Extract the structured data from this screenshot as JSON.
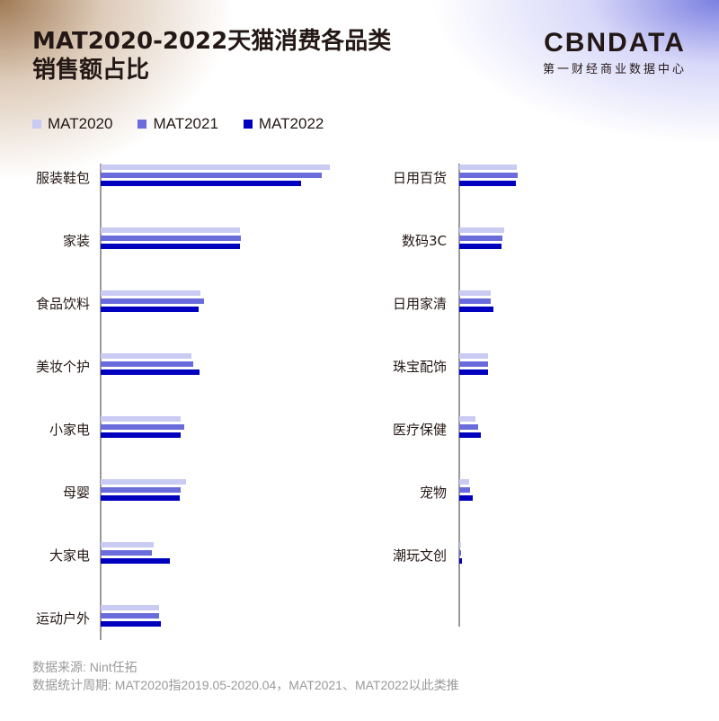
{
  "title": {
    "line1": "MAT2020-2022天猫消费各品类",
    "line2": "销售额占比"
  },
  "logo": {
    "main": "CBNDATA",
    "sub": "第一财经商业数据中心"
  },
  "legend": [
    {
      "label": "MAT2020",
      "color": "#c9cbf3"
    },
    {
      "label": "MAT2021",
      "color": "#6a6cdc"
    },
    {
      "label": "MAT2022",
      "color": "#0000bf"
    }
  ],
  "footer": {
    "source": "数据来源: Nint任拓",
    "period": "数据统计周期: MAT2020指2019.05-2020.04，MAT2021、MAT2022以此类推"
  },
  "chart_data": {
    "type": "bar",
    "orientation": "horizontal",
    "title": "MAT2020-2022天猫消费各品类销售额占比",
    "xlabel": "",
    "ylabel": "",
    "note": "No axis ticks shown; values are relative bar lengths (px) read from image",
    "grid": false,
    "legend_position": "top-left",
    "series_names": [
      "MAT2020",
      "MAT2021",
      "MAT2022"
    ],
    "panels": [
      {
        "categories": [
          "服装鞋包",
          "家装",
          "食品饮料",
          "美妆个护",
          "小家电",
          "母婴",
          "大家电",
          "运动户外"
        ],
        "series": [
          {
            "name": "MAT2020",
            "values": [
              255,
              155,
              111,
              101,
              89,
              95,
              59,
              65
            ]
          },
          {
            "name": "MAT2021",
            "values": [
              246,
              156,
              115,
              103,
              93,
              89,
              57,
              65
            ]
          },
          {
            "name": "MAT2022",
            "values": [
              223,
              155,
              109,
              110,
              89,
              88,
              77,
              67
            ]
          }
        ]
      },
      {
        "categories": [
          "日用百货",
          "数码3C",
          "日用家清",
          "珠宝配饰",
          "医疗保健",
          "宠物",
          "潮玩文创"
        ],
        "series": [
          {
            "name": "MAT2020",
            "values": [
              64,
              50,
              35,
              32,
              18,
              11,
              2
            ]
          },
          {
            "name": "MAT2021",
            "values": [
              65,
              48,
              35,
              32,
              21,
              12,
              2
            ]
          },
          {
            "name": "MAT2022",
            "values": [
              63,
              47,
              38,
              32,
              24,
              15,
              3
            ]
          }
        ]
      }
    ]
  }
}
